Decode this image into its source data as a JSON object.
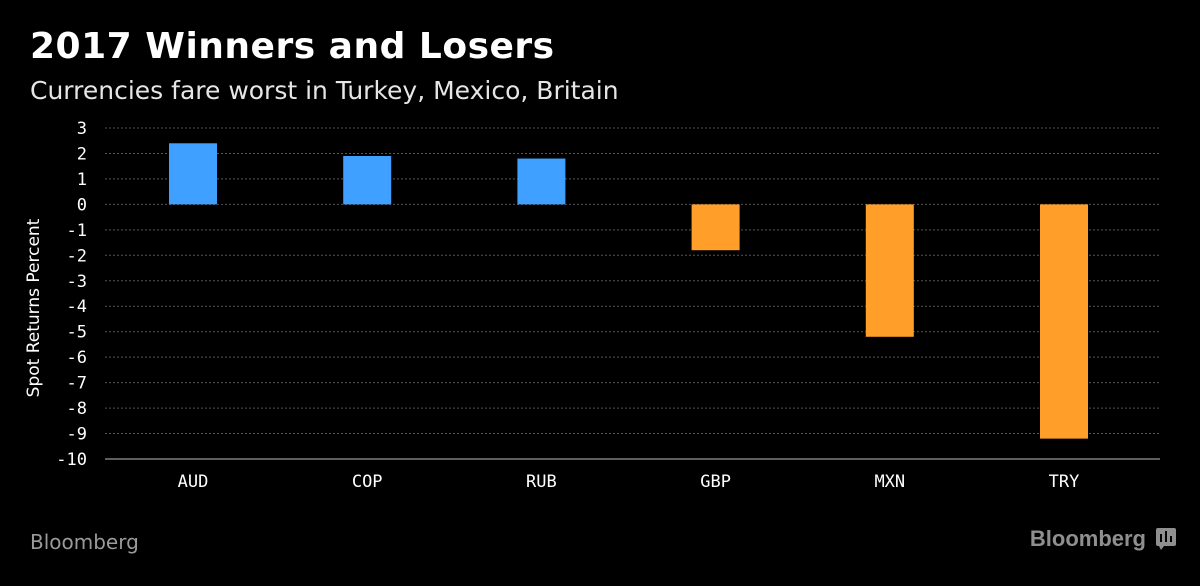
{
  "header": {
    "title": "2017 Winners and Losers",
    "subtitle": "Currencies fare worst in Turkey, Mexico, Britain"
  },
  "footer": {
    "source": "Bloomberg",
    "brand": "Bloomberg",
    "brand_icon": "bloomberg-terminal-icon"
  },
  "colors": {
    "winner": "#3fa0ff",
    "loser": "#ff9f2a",
    "background": "#000000",
    "grid": "#555555"
  },
  "chart_data": {
    "type": "bar",
    "categories": [
      "AUD",
      "COP",
      "RUB",
      "GBP",
      "MXN",
      "TRY"
    ],
    "values": [
      2.4,
      1.9,
      1.8,
      -1.8,
      -5.2,
      -9.2
    ],
    "title": "2017 Winners and Losers",
    "subtitle": "Currencies fare worst in Turkey, Mexico, Britain",
    "xlabel": "",
    "ylabel": "Spot Returns Percent",
    "ylim": [
      -10,
      3
    ],
    "yticks": [
      3,
      2,
      1,
      0,
      -1,
      -2,
      -3,
      -4,
      -5,
      -6,
      -7,
      -8,
      -9,
      -10
    ],
    "grid": true
  }
}
